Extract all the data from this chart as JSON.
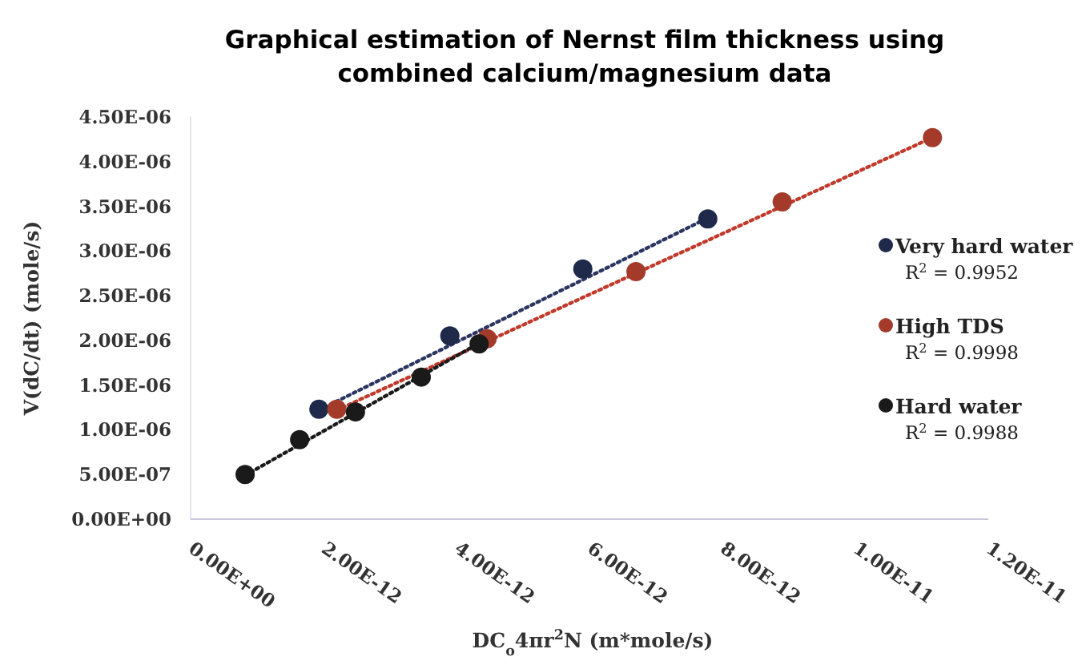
{
  "chart_data": {
    "type": "scatter",
    "title": "Graphical estimation of Nernst film thickness using combined calcium/magnesium data",
    "xlabel": "DC$_{o}$4πr$^{2}$N (m*mole/s)",
    "ylabel": "V(dC/dt) (mole/s)",
    "xlim": [
      0,
      1.2e-11
    ],
    "ylim": [
      0,
      4.5e-06
    ],
    "xticks": [
      {
        "value": 0,
        "label": "0.00E+00"
      },
      {
        "value": 2e-12,
        "label": "2.00E-12"
      },
      {
        "value": 4e-12,
        "label": "4.00E-12"
      },
      {
        "value": 6e-12,
        "label": "6.00E-12"
      },
      {
        "value": 8e-12,
        "label": "8.00E-12"
      },
      {
        "value": 1e-11,
        "label": "1.00E-11"
      },
      {
        "value": 1.2e-11,
        "label": "1.20E-11"
      }
    ],
    "yticks": [
      {
        "value": 0,
        "label": "0.00E+00"
      },
      {
        "value": 5e-07,
        "label": "5.00E-07"
      },
      {
        "value": 1e-06,
        "label": "1.00E-06"
      },
      {
        "value": 1.5e-06,
        "label": "1.50E-06"
      },
      {
        "value": 2e-06,
        "label": "2.00E-06"
      },
      {
        "value": 2.5e-06,
        "label": "2.50E-06"
      },
      {
        "value": 3e-06,
        "label": "3.00E-06"
      },
      {
        "value": 3.5e-06,
        "label": "3.50E-06"
      },
      {
        "value": 4e-06,
        "label": "4.00E-06"
      },
      {
        "value": 4.5e-06,
        "label": "4.50E-06"
      }
    ],
    "grid": false,
    "legend": "right",
    "series": [
      {
        "name": "Very hard water",
        "color": "#1f2a4a",
        "marker": "circle",
        "x": [
          1.93e-12,
          3.9e-12,
          5.9e-12,
          7.78e-12
        ],
        "values": [
          1.23e-06,
          2.05e-06,
          2.8e-06,
          3.36e-06
        ]
      },
      {
        "name": "High TDS",
        "color": "#a33a2a",
        "marker": "circle",
        "x": [
          2.2e-12,
          4.46e-12,
          6.7e-12,
          8.9e-12,
          1.116e-11
        ],
        "values": [
          1.23e-06,
          2.02e-06,
          2.77e-06,
          3.55e-06,
          4.27e-06
        ]
      },
      {
        "name": "Hard water",
        "color": "#1a1a1a",
        "marker": "circle",
        "x": [
          8.2e-13,
          1.64e-12,
          2.48e-12,
          3.47e-12,
          4.34e-12
        ],
        "values": [
          5e-07,
          8.9e-07,
          1.2e-06,
          1.59e-06,
          1.96e-06
        ]
      },
      {
        "type": "line",
        "color": "#2b3660",
        "line_style": "dotted",
        "x": [
          1.93e-12,
          7.78e-12
        ],
        "values": [
          1.22e-06,
          3.37e-06
        ]
      },
      {
        "type": "line",
        "color": "#c0392b",
        "line_style": "dotted",
        "x": [
          2.2e-12,
          1.116e-11
        ],
        "values": [
          1.22e-06,
          4.27e-06
        ]
      },
      {
        "type": "line",
        "color": "#1a1a1a",
        "line_style": "dotted",
        "x": [
          8.2e-13,
          4.34e-12
        ],
        "values": [
          4.9e-07,
          1.97e-06
        ]
      }
    ],
    "annotations": [
      "R$^{2}$ = 0.9952",
      "R$^{2}$ = 0.9998",
      "R$^{2}$ = 0.9988"
    ]
  }
}
